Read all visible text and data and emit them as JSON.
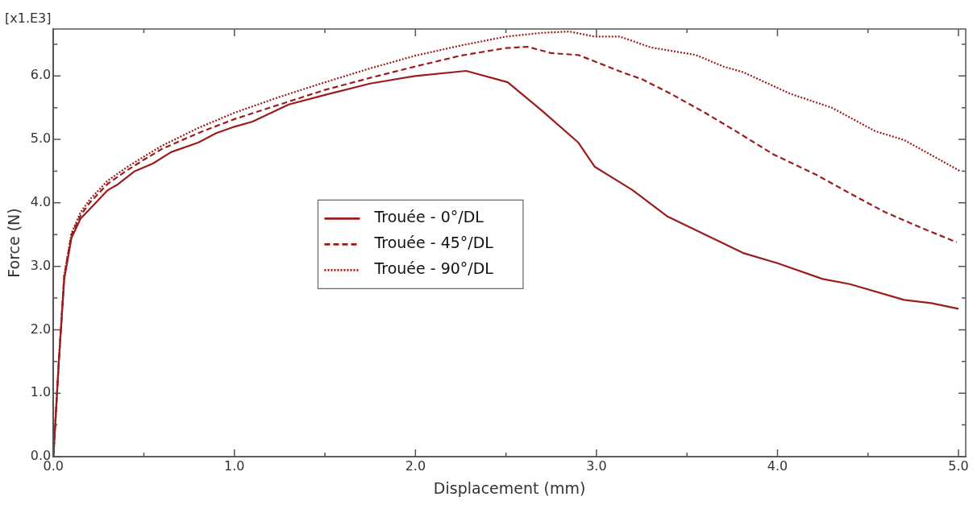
{
  "chart_data": {
    "type": "line",
    "xlabel": "Displacement (mm)",
    "ylabel": "Force (N)",
    "annotations": [
      "[x1.E3]"
    ],
    "xlim": [
      0,
      5.04
    ],
    "ylim": [
      0,
      6.74
    ],
    "xticks": [
      {
        "value": 0,
        "label": "0.0"
      },
      {
        "value": 0.5,
        "label": null
      },
      {
        "value": 1,
        "label": "1.0"
      },
      {
        "value": 1.5,
        "label": null
      },
      {
        "value": 2,
        "label": "2.0"
      },
      {
        "value": 2.5,
        "label": null
      },
      {
        "value": 3,
        "label": "3.0"
      },
      {
        "value": 3.5,
        "label": null
      },
      {
        "value": 4,
        "label": "4.0"
      },
      {
        "value": 4.5,
        "label": null
      },
      {
        "value": 5,
        "label": "5.0"
      }
    ],
    "yticks": [
      {
        "value": 0,
        "label": "0.0"
      },
      {
        "value": 0.5,
        "label": null
      },
      {
        "value": 1,
        "label": "1.0"
      },
      {
        "value": 1.5,
        "label": null
      },
      {
        "value": 2,
        "label": "2.0"
      },
      {
        "value": 2.5,
        "label": null
      },
      {
        "value": 3,
        "label": "3.0"
      },
      {
        "value": 3.5,
        "label": null
      },
      {
        "value": 4,
        "label": "4.0"
      },
      {
        "value": 4.5,
        "label": null
      },
      {
        "value": 5,
        "label": "5.0"
      },
      {
        "value": 5.5,
        "label": null
      },
      {
        "value": 6,
        "label": "6.0"
      },
      {
        "value": 6.5,
        "label": null
      }
    ],
    "grid": false,
    "legend": "center",
    "marker": "none",
    "series": [
      {
        "name": "Trouée - 0°/DL",
        "color": "#9b1c1c",
        "line_style": "solid",
        "x": [
          0,
          0.03,
          0.06,
          0.1,
          0.15,
          0.2,
          0.25,
          0.3,
          0.35,
          0.45,
          0.55,
          0.65,
          0.8,
          0.9,
          1.0,
          1.1,
          1.3,
          1.5,
          1.75,
          2.0,
          2.28,
          2.51,
          2.7,
          2.9,
          2.99,
          3.2,
          3.39,
          3.6,
          3.81,
          4.0,
          4.25,
          4.4,
          4.7,
          4.85,
          5.0
        ],
        "values": [
          0,
          1.5,
          2.8,
          3.45,
          3.75,
          3.9,
          4.05,
          4.2,
          4.28,
          4.5,
          4.62,
          4.8,
          4.95,
          5.1,
          5.2,
          5.28,
          5.55,
          5.7,
          5.88,
          6.0,
          6.08,
          5.9,
          5.45,
          4.95,
          4.57,
          4.2,
          3.79,
          3.5,
          3.21,
          3.05,
          2.8,
          2.72,
          2.47,
          2.42,
          2.33
        ]
      },
      {
        "name": "Trouée - 45°/DL",
        "color": "#9b1c1c",
        "line_style": "dashed",
        "x": [
          0,
          0.03,
          0.06,
          0.1,
          0.15,
          0.2,
          0.3,
          0.4,
          0.5,
          0.6,
          0.8,
          1.0,
          1.25,
          1.5,
          1.75,
          2.0,
          2.25,
          2.5,
          2.62,
          2.75,
          2.9,
          2.99,
          3.15,
          3.25,
          3.41,
          3.6,
          3.77,
          3.98,
          4.21,
          4.4,
          4.59,
          4.8,
          4.99
        ],
        "values": [
          0,
          1.5,
          2.85,
          3.5,
          3.8,
          4.0,
          4.3,
          4.5,
          4.68,
          4.85,
          5.1,
          5.32,
          5.55,
          5.78,
          5.97,
          6.15,
          6.32,
          6.44,
          6.46,
          6.36,
          6.33,
          6.23,
          6.05,
          5.95,
          5.72,
          5.42,
          5.13,
          4.76,
          4.45,
          4.15,
          3.86,
          3.6,
          3.38
        ]
      },
      {
        "name": "Trouée - 90°/DL",
        "color": "#9b1c1c",
        "line_style": "dotted",
        "x": [
          0,
          0.03,
          0.06,
          0.1,
          0.15,
          0.2,
          0.3,
          0.4,
          0.5,
          0.6,
          0.8,
          1.0,
          1.25,
          1.5,
          1.75,
          2.0,
          2.25,
          2.5,
          2.7,
          2.85,
          2.99,
          3.13,
          3.3,
          3.55,
          3.7,
          3.81,
          4.07,
          4.3,
          4.54,
          4.7,
          5.01
        ],
        "values": [
          0,
          1.5,
          2.87,
          3.52,
          3.85,
          4.05,
          4.35,
          4.55,
          4.73,
          4.9,
          5.18,
          5.42,
          5.67,
          5.9,
          6.12,
          6.32,
          6.48,
          6.62,
          6.68,
          6.7,
          6.62,
          6.62,
          6.45,
          6.33,
          6.15,
          6.06,
          5.72,
          5.5,
          5.13,
          4.99,
          4.5
        ]
      }
    ]
  }
}
